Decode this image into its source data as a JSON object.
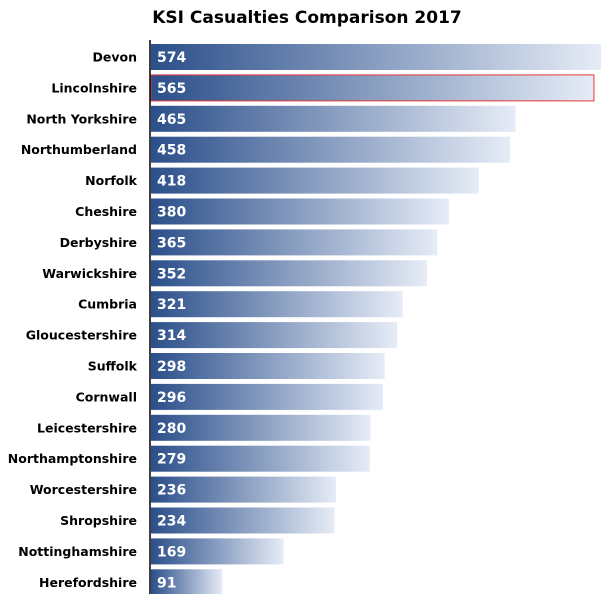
{
  "chart_data": {
    "type": "bar",
    "orientation": "horizontal",
    "title": "KSI Casualties Comparison 2017",
    "xlabel": "",
    "ylabel": "",
    "categories": [
      "Devon",
      "Lincolnshire",
      "North Yorkshire",
      "Northumberland",
      "Norfolk",
      "Cheshire",
      "Derbyshire",
      "Warwickshire",
      "Cumbria",
      "Gloucestershire",
      "Suffolk",
      "Cornwall",
      "Leicestershire",
      "Northamptonshire",
      "Worcestershire",
      "Shropshire",
      "Nottinghamshire",
      "Herefordshire"
    ],
    "values": [
      574,
      565,
      465,
      458,
      418,
      380,
      365,
      352,
      321,
      314,
      298,
      296,
      280,
      279,
      236,
      234,
      169,
      91
    ],
    "xlim": [
      0,
      574
    ],
    "grid": false,
    "legend": "none",
    "highlighted_category": "Lincolnshire",
    "colors": {
      "bar_start": "#2b4f8a",
      "bar_end": "#e6ecf7",
      "highlight_border": "#e53935",
      "axis": "#000000",
      "value_text": "#ffffff"
    }
  }
}
